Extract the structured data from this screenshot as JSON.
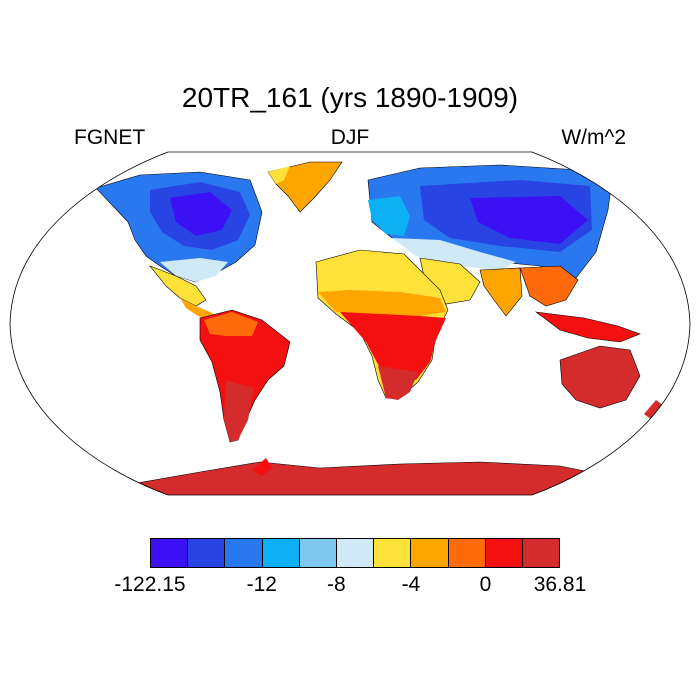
{
  "title": "20TR_161 (yrs 1890-1909)",
  "subtitle_left": "FGNET",
  "subtitle_center": "DJF",
  "subtitle_right": "W/m^2",
  "colorbar": {
    "colors": [
      "#3b10f5",
      "#2845e4",
      "#2a78f0",
      "#0cb0f5",
      "#7ec8ee",
      "#cfe9f7",
      "#fee23a",
      "#ffa500",
      "#ff6b0a",
      "#f40f10",
      "#d42c2c"
    ],
    "labels": [
      {
        "text": "-122.15",
        "boundary": 0
      },
      {
        "text": "-12",
        "boundary": 3
      },
      {
        "text": "-8",
        "boundary": 5
      },
      {
        "text": "-4",
        "boundary": 7
      },
      {
        "text": "0",
        "boundary": 9
      },
      {
        "text": "36.81",
        "boundary": 11
      }
    ]
  },
  "map": {
    "projection": "robinson",
    "variable": "FGNET",
    "season": "DJF",
    "units": "W/m^2"
  }
}
